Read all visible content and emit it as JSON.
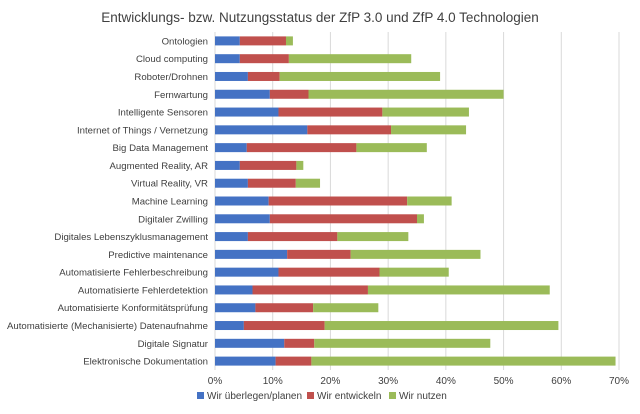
{
  "chart_data": {
    "type": "bar",
    "orientation": "horizontal",
    "stacked": true,
    "title": "Entwicklungs- bzw. Nutzungsstatus der ZfP 3.0 und ZfP 4.0 Technologien",
    "xlabel": "",
    "ylabel": "",
    "xlim": [
      0,
      0.7
    ],
    "x_ticks": [
      "0%",
      "10%",
      "20%",
      "30%",
      "40%",
      "50%",
      "60%",
      "70%"
    ],
    "x_tick_values": [
      0,
      0.1,
      0.2,
      0.3,
      0.4,
      0.5,
      0.6,
      0.7
    ],
    "grid": true,
    "legend_position": "bottom",
    "categories": [
      "Ontologien",
      "Cloud computing",
      "Roboter/Drohnen",
      "Fernwartung",
      "Intelligente Sensoren",
      "Internet of Things / Vernetzung",
      "Big Data Management",
      "Augmented Reality, AR",
      "Virtual Reality, VR",
      "Machine Learning",
      "Digitaler Zwilling",
      "Digitales Lebenszyklusmanagement",
      "Predictive maintenance",
      "Automatisierte Fehlerbeschreibung",
      "Automatisierte Fehlerdetektion",
      "Automatisierte Konformitätsprüfung",
      "Automatisierte (Mechanisierte) Datenaufnahme",
      "Digitale Signatur",
      "Elektronische Dokumentation"
    ],
    "series": [
      {
        "name": "Wir überlegen/planen",
        "color": "#4472C4",
        "values": [
          0.043,
          0.043,
          0.057,
          0.095,
          0.11,
          0.16,
          0.055,
          0.043,
          0.057,
          0.093,
          0.095,
          0.057,
          0.125,
          0.11,
          0.065,
          0.07,
          0.05,
          0.12,
          0.105
        ]
      },
      {
        "name": "Wir entwickeln",
        "color": "#C0504D",
        "values": [
          0.08,
          0.085,
          0.055,
          0.067,
          0.18,
          0.145,
          0.19,
          0.098,
          0.083,
          0.24,
          0.255,
          0.155,
          0.11,
          0.175,
          0.2,
          0.1,
          0.14,
          0.052,
          0.062
        ]
      },
      {
        "name": "Wir nutzen",
        "color": "#9BBB59",
        "values": [
          0.012,
          0.212,
          0.278,
          0.338,
          0.15,
          0.13,
          0.122,
          0.012,
          0.042,
          0.077,
          0.012,
          0.123,
          0.225,
          0.12,
          0.315,
          0.113,
          0.405,
          0.305,
          0.527
        ]
      }
    ]
  }
}
